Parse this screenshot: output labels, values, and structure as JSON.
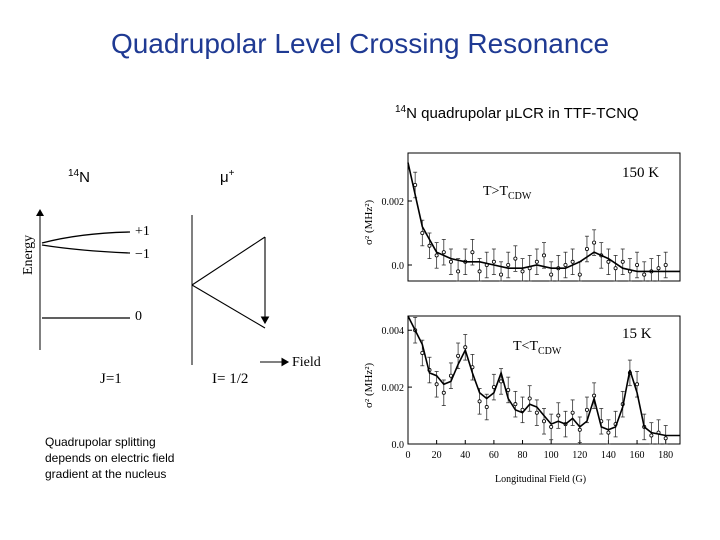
{
  "slide": {
    "title": "Quadrupolar Level Crossing Resonance",
    "subtitle_sup": "14",
    "subtitle_text": "N quadrupolar μLCR in TTF-TCNQ",
    "n14_sup": "14",
    "n14_text": "N",
    "mu_text": "μ",
    "mu_sup": "+",
    "caption": [
      "Quadrupolar splitting",
      "depends on electric field",
      "gradient at the nucleus"
    ]
  },
  "level_diagram": {
    "energy_label": "Energy",
    "levels": [
      "+1",
      "−1",
      "0"
    ],
    "j_label": "J=1",
    "i_label": "I= 1/2",
    "field_label": "Field"
  },
  "chart_data": [
    {
      "type": "scatter",
      "label": "150 K",
      "annotation_main": "T>T",
      "annotation_sub": "CDW",
      "ylabel": "σ² (MHz²)",
      "yticks": [
        "0.002",
        "0.0"
      ],
      "ylim": [
        -0.0005,
        0.0035
      ],
      "xlim": [
        0,
        190
      ],
      "curve": [
        [
          0,
          0.0032
        ],
        [
          10,
          0.0012
        ],
        [
          20,
          0.0004
        ],
        [
          30,
          0.0002
        ],
        [
          40,
          0.0001
        ],
        [
          50,
          0.0001
        ],
        [
          60,
          0.0
        ],
        [
          70,
          -0.0001
        ],
        [
          80,
          -0.0001
        ],
        [
          90,
          0.0
        ],
        [
          100,
          -0.0001
        ],
        [
          110,
          -0.0001
        ],
        [
          120,
          0.0001
        ],
        [
          130,
          0.0004
        ],
        [
          140,
          0.0002
        ],
        [
          150,
          -0.0001
        ],
        [
          160,
          -0.0002
        ],
        [
          170,
          -0.0002
        ],
        [
          180,
          -0.0002
        ],
        [
          190,
          -0.0002
        ]
      ],
      "points": [
        [
          5,
          0.0025
        ],
        [
          10,
          0.001
        ],
        [
          15,
          0.0006
        ],
        [
          20,
          0.0003
        ],
        [
          25,
          0.0004
        ],
        [
          30,
          0.0001
        ],
        [
          35,
          -0.0002
        ],
        [
          40,
          0.0001
        ],
        [
          45,
          0.0004
        ],
        [
          50,
          -0.0002
        ],
        [
          55,
          0.0
        ],
        [
          60,
          0.0001
        ],
        [
          65,
          -0.0003
        ],
        [
          70,
          0.0
        ],
        [
          75,
          0.0002
        ],
        [
          80,
          -0.0002
        ],
        [
          85,
          -0.0001
        ],
        [
          90,
          0.0001
        ],
        [
          95,
          0.0003
        ],
        [
          100,
          -0.0003
        ],
        [
          105,
          -0.0001
        ],
        [
          110,
          0.0
        ],
        [
          115,
          0.0001
        ],
        [
          120,
          -0.0003
        ],
        [
          125,
          0.0005
        ],
        [
          130,
          0.0007
        ],
        [
          135,
          0.0003
        ],
        [
          140,
          0.0001
        ],
        [
          145,
          -0.0001
        ],
        [
          150,
          0.0001
        ],
        [
          155,
          -0.0002
        ],
        [
          160,
          0.0
        ],
        [
          165,
          -0.0003
        ],
        [
          170,
          -0.0002
        ],
        [
          175,
          -0.0001
        ],
        [
          180,
          0.0
        ]
      ]
    },
    {
      "type": "scatter",
      "label": "15 K",
      "annotation_main": "T<T",
      "annotation_sub": "CDW",
      "ylabel": "σ² (MHz²)",
      "yticks": [
        "0.004",
        "0.002",
        "0.0"
      ],
      "xlabel": "Longitudinal Field (G)",
      "xticks": [
        "0",
        "20",
        "40",
        "60",
        "80",
        "100",
        "120",
        "140",
        "160",
        "180"
      ],
      "ylim": [
        0,
        0.0045
      ],
      "xlim": [
        0,
        190
      ],
      "curve": [
        [
          0,
          0.0045
        ],
        [
          10,
          0.0035
        ],
        [
          15,
          0.0025
        ],
        [
          20,
          0.0024
        ],
        [
          25,
          0.0021
        ],
        [
          30,
          0.0022
        ],
        [
          35,
          0.0028
        ],
        [
          40,
          0.0033
        ],
        [
          45,
          0.0025
        ],
        [
          50,
          0.0018
        ],
        [
          55,
          0.0016
        ],
        [
          60,
          0.0018
        ],
        [
          65,
          0.0025
        ],
        [
          70,
          0.0016
        ],
        [
          75,
          0.0012
        ],
        [
          80,
          0.0011
        ],
        [
          85,
          0.0014
        ],
        [
          90,
          0.0013
        ],
        [
          95,
          0.001
        ],
        [
          100,
          0.0007
        ],
        [
          105,
          0.0008
        ],
        [
          110,
          0.0007
        ],
        [
          115,
          0.0009
        ],
        [
          120,
          0.0006
        ],
        [
          125,
          0.0008
        ],
        [
          130,
          0.0016
        ],
        [
          135,
          0.0006
        ],
        [
          140,
          0.0005
        ],
        [
          145,
          0.0006
        ],
        [
          150,
          0.0013
        ],
        [
          155,
          0.0026
        ],
        [
          160,
          0.0018
        ],
        [
          165,
          0.0006
        ],
        [
          170,
          0.0004
        ],
        [
          180,
          0.0003
        ],
        [
          190,
          0.0003
        ]
      ],
      "points": [
        [
          5,
          0.004
        ],
        [
          10,
          0.0032
        ],
        [
          15,
          0.0026
        ],
        [
          20,
          0.0021
        ],
        [
          25,
          0.0018
        ],
        [
          30,
          0.0024
        ],
        [
          35,
          0.0031
        ],
        [
          40,
          0.0034
        ],
        [
          45,
          0.0027
        ],
        [
          50,
          0.0015
        ],
        [
          55,
          0.0013
        ],
        [
          60,
          0.002
        ],
        [
          65,
          0.0022
        ],
        [
          70,
          0.0019
        ],
        [
          75,
          0.0014
        ],
        [
          80,
          0.0012
        ],
        [
          85,
          0.0016
        ],
        [
          90,
          0.0011
        ],
        [
          95,
          0.0008
        ],
        [
          100,
          0.0006
        ],
        [
          105,
          0.001
        ],
        [
          110,
          0.0007
        ],
        [
          115,
          0.0011
        ],
        [
          120,
          0.0005
        ],
        [
          125,
          0.0012
        ],
        [
          130,
          0.0017
        ],
        [
          135,
          0.0008
        ],
        [
          140,
          0.0004
        ],
        [
          145,
          0.0007
        ],
        [
          150,
          0.0014
        ],
        [
          155,
          0.0025
        ],
        [
          160,
          0.0021
        ],
        [
          165,
          0.0006
        ],
        [
          170,
          0.0003
        ],
        [
          175,
          0.0004
        ],
        [
          180,
          0.0002
        ]
      ]
    }
  ]
}
